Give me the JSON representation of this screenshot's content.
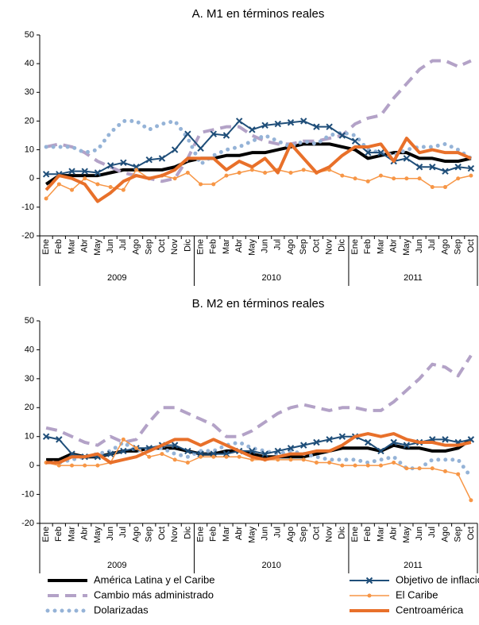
{
  "chart_data": [
    {
      "type": "line",
      "title": "A. M1 en términos reales",
      "categories": [
        "Ene",
        "Feb",
        "Mar",
        "Abr",
        "May",
        "Jun",
        "Jul",
        "Ago",
        "Sep",
        "Oct",
        "Nov",
        "Dic",
        "Ene",
        "Feb",
        "Mar",
        "Abr",
        "May",
        "Jun",
        "Jul",
        "Ago",
        "Sep",
        "Oct",
        "Nov",
        "Dic",
        "Ene",
        "Feb",
        "Mar",
        "Abr",
        "May",
        "Jun",
        "Jul",
        "Ago",
        "Sep",
        "Oct"
      ],
      "x_groups": [
        "2009",
        "2010",
        "2011"
      ],
      "ylim": [
        -20,
        50
      ],
      "yticks": [
        -20,
        -10,
        0,
        10,
        20,
        30,
        40,
        50
      ],
      "series": [
        {
          "name": "América Latina y el Caribe",
          "color": "#000000",
          "style": "solid",
          "width": 4,
          "values": [
            -2,
            1,
            1,
            1,
            1,
            2,
            3,
            3,
            3,
            3,
            4,
            6,
            7,
            7,
            8,
            8,
            9,
            9,
            10,
            11,
            12,
            12,
            12,
            11,
            10,
            7,
            8,
            9,
            9,
            7,
            7,
            6,
            6,
            7
          ]
        },
        {
          "name": "Cambio más administrado",
          "color": "#b3a2c7",
          "style": "dashed",
          "width": 4,
          "values": [
            11,
            12,
            11,
            9,
            6,
            4,
            2,
            1,
            0,
            -1,
            0,
            7,
            16,
            17,
            18,
            18,
            15,
            13,
            12,
            12,
            13,
            13,
            14,
            15,
            19,
            21,
            22,
            28,
            33,
            38,
            41,
            41,
            39,
            41
          ]
        },
        {
          "name": "Dolarizadas",
          "color": "#95b3d7",
          "style": "dotted",
          "width": 5,
          "values": [
            11,
            11,
            11,
            9,
            10,
            16,
            20,
            20,
            17,
            19,
            20,
            14,
            5,
            8,
            10,
            11,
            13,
            15,
            13,
            11,
            13,
            12,
            15,
            16,
            15,
            10,
            9,
            8,
            10,
            11,
            11,
            12,
            10,
            7
          ]
        },
        {
          "name": "Objetivo de inflación",
          "color": "#1f4e79",
          "style": "x-markers",
          "width": 2,
          "values": [
            1.5,
            1.5,
            2.5,
            2.5,
            2,
            4.5,
            5.5,
            4,
            6.5,
            7,
            10,
            15.5,
            10.5,
            15.5,
            15,
            20,
            17,
            18.5,
            19,
            19.5,
            20,
            18,
            18,
            15,
            13,
            9,
            9,
            6,
            7,
            4,
            4,
            2.5,
            4,
            3.5
          ]
        },
        {
          "name": "El Caribe",
          "color": "#f79646",
          "style": "dot-markers",
          "width": 1.5,
          "values": [
            -7,
            -2,
            -4,
            0,
            -2,
            -3,
            -4,
            3,
            0,
            1,
            0,
            2,
            -2,
            -2,
            1,
            2,
            3,
            2,
            3,
            2,
            3,
            2,
            3,
            1,
            0,
            -1,
            1,
            0,
            0,
            0,
            -3,
            -3,
            0,
            1
          ]
        },
        {
          "name": "Centroamérica",
          "color": "#e8702a",
          "style": "solid",
          "width": 4,
          "values": [
            -4,
            1,
            0,
            -2,
            -8,
            -5,
            -1,
            1,
            0,
            1,
            3,
            7,
            7,
            7,
            3,
            6,
            4,
            7,
            2,
            12,
            7,
            2,
            4,
            8,
            11,
            11,
            12,
            6,
            14,
            9,
            10,
            9,
            9,
            7
          ]
        }
      ]
    },
    {
      "type": "line",
      "title": "B. M2 en términos reales",
      "categories": [
        "Ene",
        "Feb",
        "Mar",
        "Abr",
        "May",
        "Jun",
        "Jul",
        "Ago",
        "Sep",
        "Oct",
        "Nov",
        "Dic",
        "Ene",
        "Feb",
        "Mar",
        "Abr",
        "May",
        "Jun",
        "Jul",
        "Ago",
        "Sep",
        "Oct",
        "Nov",
        "Dic",
        "Ene",
        "Feb",
        "Mar",
        "Abr",
        "May",
        "Jun",
        "Jul",
        "Ago",
        "Sep",
        "Oct"
      ],
      "x_groups": [
        "2009",
        "2010",
        "2011"
      ],
      "ylim": [
        -20,
        50
      ],
      "yticks": [
        -20,
        -10,
        0,
        10,
        20,
        30,
        40,
        50
      ],
      "series": [
        {
          "name": "América Latina y el Caribe",
          "color": "#000000",
          "style": "solid",
          "width": 4,
          "values": [
            2,
            2,
            4,
            3,
            3,
            4,
            5,
            5,
            6,
            6,
            6,
            5,
            4,
            4,
            5,
            5,
            4,
            3,
            3,
            3,
            3,
            4,
            5,
            6,
            6,
            6,
            5,
            7,
            6,
            6,
            5,
            5,
            6,
            9
          ]
        },
        {
          "name": "Cambio más administrado",
          "color": "#b3a2c7",
          "style": "dashed",
          "width": 4,
          "values": [
            13,
            12,
            10,
            8,
            7,
            10,
            8,
            9,
            15,
            20,
            20,
            18,
            16,
            14,
            10,
            10,
            12,
            15,
            18,
            20,
            21,
            20,
            19,
            20,
            20,
            19,
            19,
            22,
            26,
            30,
            35,
            34,
            31,
            38
          ]
        },
        {
          "name": "Dolarizadas",
          "color": "#95b3d7",
          "style": "dotted",
          "width": 5,
          "values": [
            1,
            1,
            2,
            3,
            4,
            5,
            8,
            5,
            6,
            6,
            4,
            3,
            5,
            5,
            7,
            8,
            6,
            5,
            4,
            5,
            4,
            3,
            2,
            2,
            2,
            1,
            2,
            3,
            -1,
            -1,
            2,
            2,
            2,
            -4
          ]
        },
        {
          "name": "Objetivo de inflación",
          "color": "#1f4e79",
          "style": "x-markers",
          "width": 2,
          "values": [
            10,
            9,
            4,
            3,
            3,
            4,
            5,
            6,
            6,
            7,
            7,
            5,
            4,
            4,
            4,
            5,
            5,
            4,
            5,
            6,
            7,
            8,
            9,
            10,
            10,
            8,
            5,
            8,
            7,
            8,
            9,
            9,
            8,
            9
          ]
        },
        {
          "name": "El Caribe",
          "color": "#f79646",
          "style": "dot-markers",
          "width": 1.5,
          "values": [
            1,
            0,
            0,
            0,
            0,
            1,
            9,
            6,
            3,
            4,
            2,
            1,
            3,
            3,
            3,
            3,
            2,
            2,
            2,
            2,
            2,
            1,
            1,
            0,
            0,
            0,
            0,
            1,
            -1,
            -1,
            -1,
            -2,
            -3,
            -12
          ]
        },
        {
          "name": "Centroamérica",
          "color": "#e8702a",
          "style": "solid",
          "width": 4,
          "values": [
            1,
            1,
            3,
            3,
            4,
            1,
            2,
            3,
            5,
            7,
            9,
            9,
            7,
            9,
            7,
            5,
            3,
            2,
            3,
            4,
            4,
            5,
            5,
            7,
            10,
            11,
            10,
            11,
            9,
            8,
            8,
            7,
            7,
            8
          ]
        }
      ]
    }
  ]
}
